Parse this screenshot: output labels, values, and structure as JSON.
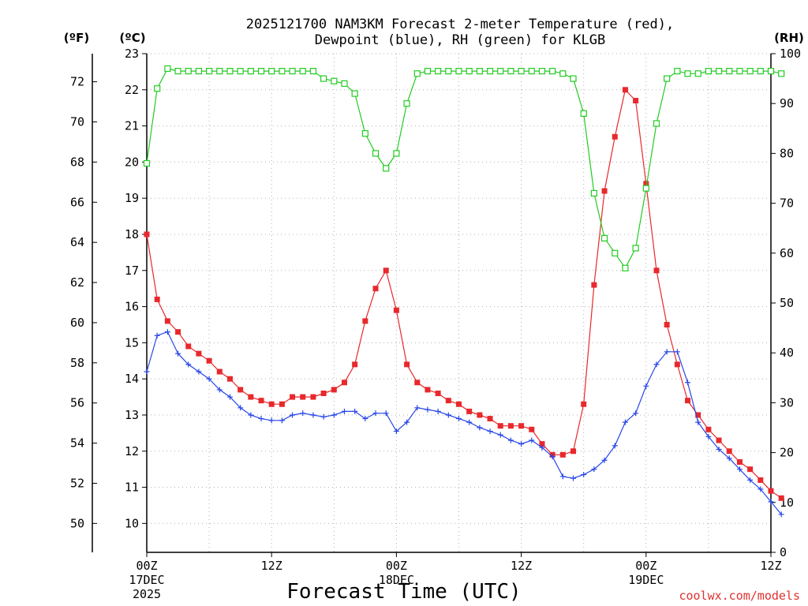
{
  "chart_data": {
    "type": "line",
    "title_line1": "2025121700 NAM3KM Forecast 2-meter Temperature (red),",
    "title_line2": "Dewpoint (blue), RH (green) for KLGB",
    "units": {
      "fahrenheit": "(ºF)",
      "celsius": "(ºC)",
      "rh": "(RH)"
    },
    "xlabel": "Forecast Time (UTC)",
    "credit": "coolwx.com/models",
    "x_range_hours": [
      0,
      60
    ],
    "y_celsius_range": [
      9.2,
      23
    ],
    "y_rh_range": [
      0,
      100
    ],
    "celsius_ticks": [
      "10",
      "11",
      "12",
      "13",
      "14",
      "15",
      "16",
      "17",
      "18",
      "19",
      "20",
      "21",
      "22",
      "23"
    ],
    "fahrenheit_ticks": [
      "50",
      "52",
      "54",
      "56",
      "58",
      "60",
      "62",
      "64",
      "66",
      "68",
      "70",
      "72"
    ],
    "rh_ticks": [
      "0",
      "10",
      "20",
      "30",
      "40",
      "50",
      "60",
      "70",
      "80",
      "90",
      "100"
    ],
    "x_ticks": [
      {
        "hour": 0,
        "label": "00Z",
        "date": "17DEC",
        "year": "2025"
      },
      {
        "hour": 12,
        "label": "12Z",
        "date": "",
        "year": ""
      },
      {
        "hour": 24,
        "label": "00Z",
        "date": "18DEC",
        "year": ""
      },
      {
        "hour": 36,
        "label": "12Z",
        "date": "",
        "year": ""
      },
      {
        "hour": 48,
        "label": "00Z",
        "date": "19DEC",
        "year": ""
      },
      {
        "hour": 60,
        "label": "12Z",
        "date": "",
        "year": ""
      }
    ],
    "series": [
      {
        "name": "Temperature",
        "units": "C",
        "color": "#e8282c",
        "marker": "filled-square",
        "values": [
          18.0,
          16.2,
          15.6,
          15.3,
          14.9,
          14.7,
          14.5,
          14.2,
          14.0,
          13.7,
          13.5,
          13.4,
          13.3,
          13.3,
          13.5,
          13.5,
          13.5,
          13.6,
          13.7,
          13.9,
          14.4,
          15.6,
          16.5,
          17.0,
          15.9,
          14.4,
          13.9,
          13.7,
          13.6,
          13.4,
          13.3,
          13.1,
          13.0,
          12.9,
          12.7,
          12.7,
          12.7,
          12.6,
          12.2,
          11.9,
          11.9,
          12.0,
          13.3,
          16.6,
          19.2,
          20.7,
          22.0,
          21.7,
          19.4,
          17.0,
          15.5,
          14.4,
          13.4,
          13.0,
          12.6,
          12.3,
          12.0,
          11.7,
          11.5,
          11.2,
          10.9,
          10.7
        ]
      },
      {
        "name": "Dewpoint",
        "units": "C",
        "color": "#2846e8",
        "marker": "plus",
        "values": [
          14.2,
          15.2,
          15.3,
          14.7,
          14.4,
          14.2,
          14.0,
          13.7,
          13.5,
          13.2,
          13.0,
          12.9,
          12.85,
          12.85,
          13.0,
          13.05,
          13.0,
          12.95,
          13.0,
          13.1,
          13.1,
          12.9,
          13.05,
          13.05,
          12.55,
          12.8,
          13.2,
          13.15,
          13.1,
          13.0,
          12.9,
          12.8,
          12.65,
          12.55,
          12.45,
          12.3,
          12.2,
          12.3,
          12.1,
          11.85,
          11.3,
          11.25,
          11.35,
          11.5,
          11.75,
          12.15,
          12.8,
          13.05,
          13.8,
          14.4,
          14.75,
          14.75,
          13.9,
          12.8,
          12.4,
          12.05,
          11.8,
          11.5,
          11.2,
          10.95,
          10.6,
          10.25
        ]
      },
      {
        "name": "RH",
        "units": "%",
        "color": "#22cc22",
        "marker": "open-square",
        "values": [
          78,
          93,
          97,
          96.5,
          96.5,
          96.5,
          96.5,
          96.5,
          96.5,
          96.5,
          96.5,
          96.5,
          96.5,
          96.5,
          96.5,
          96.5,
          96.5,
          95,
          94.5,
          94,
          92,
          84,
          80,
          77,
          80,
          90,
          96,
          96.5,
          96.5,
          96.5,
          96.5,
          96.5,
          96.5,
          96.5,
          96.5,
          96.5,
          96.5,
          96.5,
          96.5,
          96.5,
          96,
          95,
          88,
          72,
          63,
          60,
          57,
          61,
          73,
          86,
          95,
          96.5,
          96,
          96,
          96.5,
          96.5,
          96.5,
          96.5,
          96.5,
          96.5,
          96.5,
          96
        ]
      }
    ]
  }
}
